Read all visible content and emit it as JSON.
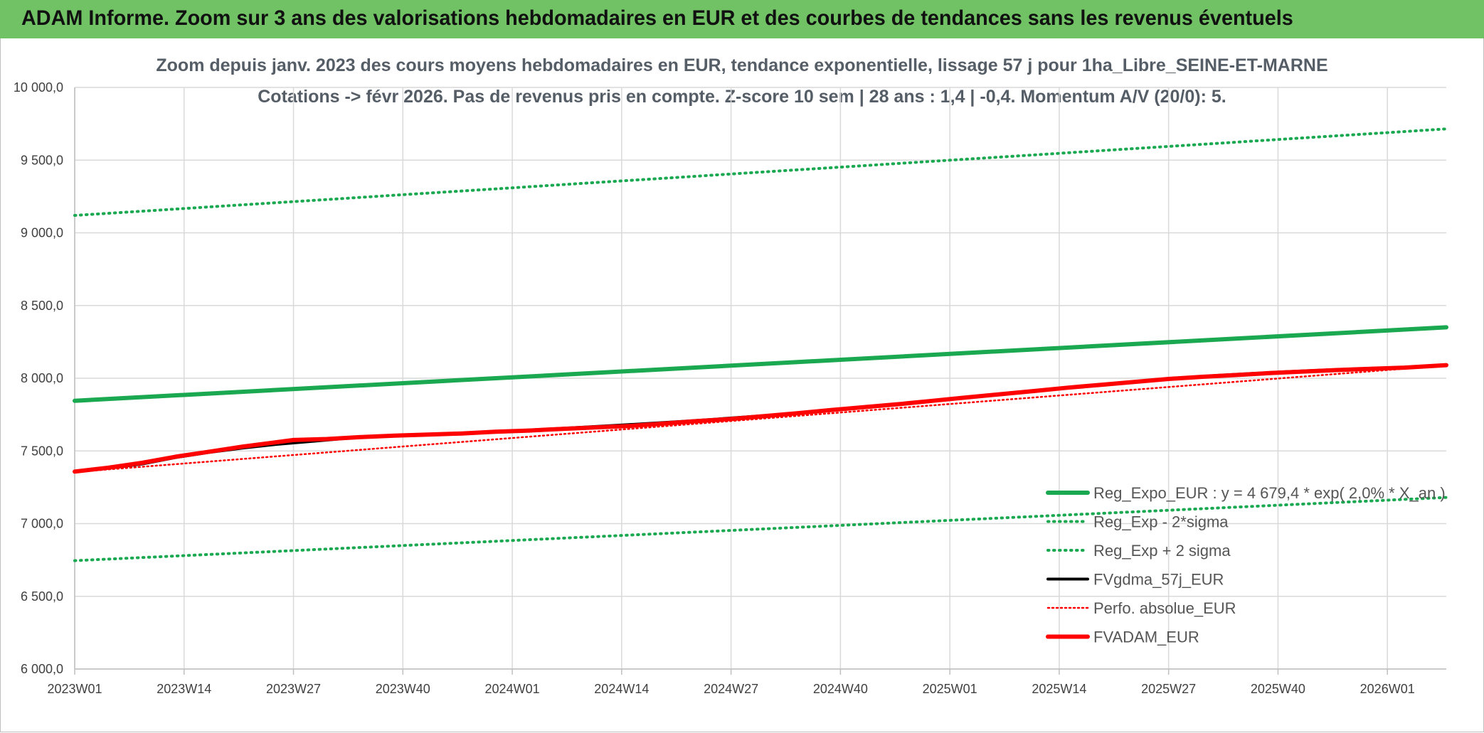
{
  "header": {
    "title": "ADAM Informe. Zoom sur 3 ans des valorisations hebdomadaires en EUR et des courbes de tendances sans les revenus éventuels"
  },
  "colors": {
    "banner": "#70c264",
    "trend": "#1aa850",
    "sigma": "#1aa850",
    "fv": "#000000",
    "perf": "#ff0000",
    "adam": "#ff0000",
    "grid": "#d9d9d9"
  },
  "chart_data": {
    "type": "line",
    "title_line1": "Zoom depuis janv. 2023 des cours moyens hebdomadaires en EUR, tendance exponentielle, lissage 57 j pour 1ha_Libre_SEINE-ET-MARNE",
    "title_line2": "Cotations -> févr 2026. Pas de revenus pris en compte. Z-score 10 sem | 28 ans : 1,4 | -0,4. Momentum A/V (20/0): 5.",
    "xlabel": "",
    "ylabel": "",
    "ylim": [
      6000,
      10000
    ],
    "x_range": [
      0,
      163
    ],
    "y_ticks": [
      {
        "v": 6000,
        "label": "6 000,0"
      },
      {
        "v": 6500,
        "label": "6 500,0"
      },
      {
        "v": 7000,
        "label": "7 000,0"
      },
      {
        "v": 7500,
        "label": "7 500,0"
      },
      {
        "v": 8000,
        "label": "8 000,0"
      },
      {
        "v": 8500,
        "label": "8 500,0"
      },
      {
        "v": 9000,
        "label": "9 000,0"
      },
      {
        "v": 9500,
        "label": "9 500,0"
      },
      {
        "v": 10000,
        "label": "10 000,0"
      }
    ],
    "x_ticks": [
      {
        "w": 0,
        "label": "2023W01"
      },
      {
        "w": 13,
        "label": "2023W14"
      },
      {
        "w": 26,
        "label": "2023W27"
      },
      {
        "w": 39,
        "label": "2023W40"
      },
      {
        "w": 52,
        "label": "2024W01"
      },
      {
        "w": 65,
        "label": "2024W14"
      },
      {
        "w": 78,
        "label": "2024W27"
      },
      {
        "w": 91,
        "label": "2024W40"
      },
      {
        "w": 104,
        "label": "2025W01"
      },
      {
        "w": 117,
        "label": "2025W14"
      },
      {
        "w": 130,
        "label": "2025W27"
      },
      {
        "w": 143,
        "label": "2025W40"
      },
      {
        "w": 156,
        "label": "2026W01"
      }
    ],
    "series": [
      {
        "name": "Reg_Expo_EUR : y = 4 679,4 * exp( 2,0% * X_an )",
        "style": "trend",
        "points": [
          [
            0,
            7845
          ],
          [
            163,
            8350
          ]
        ]
      },
      {
        "name": "Reg_Exp - 2*sigma",
        "style": "sigma",
        "points": [
          [
            0,
            6745
          ],
          [
            163,
            7180
          ]
        ]
      },
      {
        "name": "Reg_Exp + 2 sigma",
        "style": "sigma",
        "points": [
          [
            0,
            9120
          ],
          [
            163,
            9715
          ]
        ]
      },
      {
        "name": "FVgdma_57j_EUR",
        "style": "fv",
        "points": [
          [
            0,
            7355
          ],
          [
            4,
            7380
          ],
          [
            8,
            7410
          ],
          [
            12,
            7455
          ],
          [
            16,
            7490
          ],
          [
            20,
            7520
          ],
          [
            24,
            7545
          ],
          [
            28,
            7565
          ],
          [
            32,
            7585
          ],
          [
            36,
            7600
          ],
          [
            40,
            7610
          ],
          [
            44,
            7618
          ],
          [
            48,
            7628
          ],
          [
            52,
            7638
          ],
          [
            56,
            7650
          ],
          [
            60,
            7662
          ],
          [
            64,
            7675
          ],
          [
            68,
            7688
          ],
          [
            72,
            7702
          ],
          [
            76,
            7718
          ],
          [
            80,
            7735
          ],
          [
            84,
            7752
          ],
          [
            88,
            7770
          ],
          [
            92,
            7790
          ],
          [
            96,
            7810
          ],
          [
            100,
            7832
          ],
          [
            104,
            7855
          ],
          [
            108,
            7878
          ],
          [
            112,
            7900
          ],
          [
            116,
            7922
          ],
          [
            120,
            7945
          ],
          [
            124,
            7965
          ],
          [
            128,
            7985
          ],
          [
            132,
            8003
          ],
          [
            136,
            8020
          ],
          [
            140,
            8033
          ],
          [
            144,
            8045
          ],
          [
            148,
            8055
          ],
          [
            152,
            8064
          ],
          [
            156,
            8072
          ],
          [
            160,
            8080
          ],
          [
            163,
            8088
          ]
        ]
      },
      {
        "name": "Perfo. absolue_EUR",
        "style": "perf",
        "points": [
          [
            0,
            7355
          ],
          [
            163,
            8088
          ]
        ]
      },
      {
        "name": "FVADAM_EUR",
        "style": "adam",
        "points": [
          [
            0,
            7358
          ],
          [
            4,
            7385
          ],
          [
            8,
            7418
          ],
          [
            12,
            7460
          ],
          [
            16,
            7495
          ],
          [
            20,
            7530
          ],
          [
            24,
            7560
          ],
          [
            26,
            7575
          ],
          [
            30,
            7582
          ],
          [
            34,
            7595
          ],
          [
            38,
            7605
          ],
          [
            42,
            7612
          ],
          [
            46,
            7620
          ],
          [
            50,
            7632
          ],
          [
            54,
            7640
          ],
          [
            58,
            7652
          ],
          [
            62,
            7662
          ],
          [
            66,
            7672
          ],
          [
            70,
            7688
          ],
          [
            74,
            7705
          ],
          [
            78,
            7720
          ],
          [
            82,
            7740
          ],
          [
            86,
            7760
          ],
          [
            90,
            7782
          ],
          [
            94,
            7802
          ],
          [
            98,
            7822
          ],
          [
            102,
            7845
          ],
          [
            106,
            7868
          ],
          [
            110,
            7890
          ],
          [
            114,
            7912
          ],
          [
            118,
            7935
          ],
          [
            122,
            7955
          ],
          [
            126,
            7975
          ],
          [
            130,
            7995
          ],
          [
            134,
            8010
          ],
          [
            138,
            8022
          ],
          [
            142,
            8035
          ],
          [
            146,
            8046
          ],
          [
            150,
            8056
          ],
          [
            154,
            8065
          ],
          [
            158,
            8073
          ],
          [
            163,
            8090
          ]
        ]
      }
    ],
    "legend_position": "bottom-right"
  }
}
